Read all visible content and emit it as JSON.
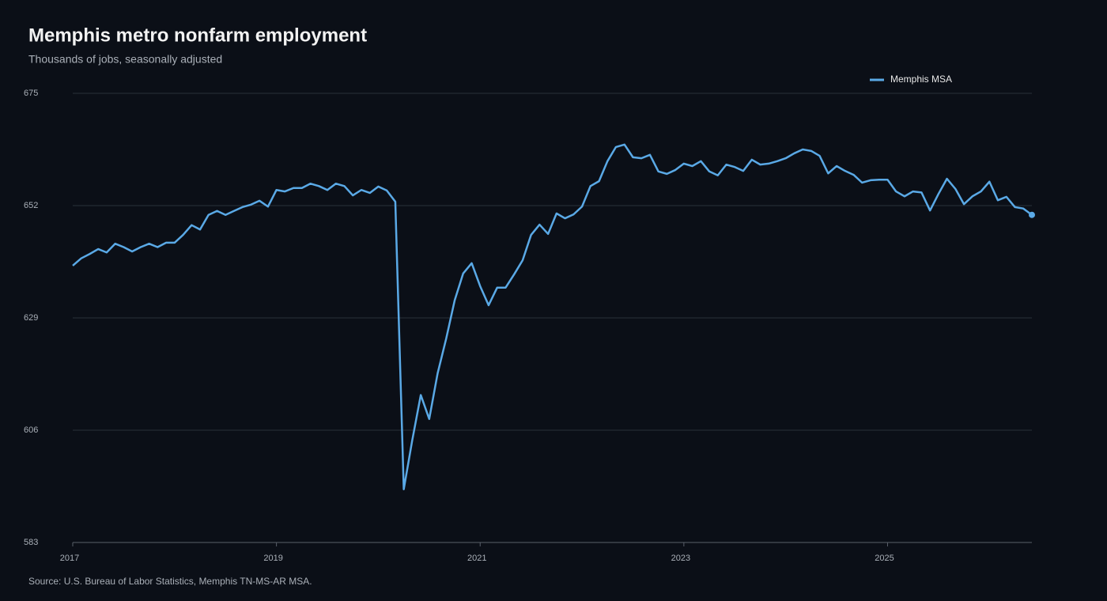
{
  "chart_data": {
    "type": "line",
    "title": "Memphis metro nonfarm employment",
    "subtitle": "Thousands of jobs, seasonally adjusted",
    "source": "Source: U.S. Bureau of Labor Statistics, Memphis TN-MS-AR MSA.",
    "x": [
      2017,
      2017.083,
      2017.167,
      2017.25,
      2017.333,
      2017.417,
      2017.5,
      2017.583,
      2017.667,
      2017.75,
      2017.833,
      2017.917,
      2018,
      2018.083,
      2018.167,
      2018.25,
      2018.333,
      2018.417,
      2018.5,
      2018.583,
      2018.667,
      2018.75,
      2018.833,
      2018.917,
      2019,
      2019.083,
      2019.167,
      2019.25,
      2019.333,
      2019.417,
      2019.5,
      2019.583,
      2019.667,
      2019.75,
      2019.833,
      2019.917,
      2020,
      2020.083,
      2020.167,
      2020.25,
      2020.333,
      2020.417,
      2020.5,
      2020.583,
      2020.667,
      2020.75,
      2020.833,
      2020.917,
      2021,
      2021.083,
      2021.167,
      2021.25,
      2021.333,
      2021.417,
      2021.5,
      2021.583,
      2021.667,
      2021.75,
      2021.833,
      2021.917,
      2022,
      2022.083,
      2022.167,
      2022.25,
      2022.333,
      2022.417,
      2022.5,
      2022.583,
      2022.667,
      2022.75,
      2022.833,
      2022.917,
      2023,
      2023.083,
      2023.167,
      2023.25,
      2023.333,
      2023.417,
      2023.5,
      2023.583,
      2023.667,
      2023.75,
      2023.833,
      2023.917,
      2024,
      2024.083,
      2024.167,
      2024.25,
      2024.333,
      2024.417,
      2024.5,
      2024.583,
      2024.667,
      2024.75,
      2024.833,
      2024.917,
      2025,
      2025.083,
      2025.167,
      2025.25,
      2025.333,
      2025.417,
      2025.5,
      2025.583,
      2025.667,
      2025.75,
      2025.833,
      2025.917,
      2026,
      2026.083,
      2026.167,
      2026.25,
      2026.333,
      2026.417
    ],
    "series": [
      {
        "name": "Memphis MSA",
        "color": "#5aa9e6",
        "values": [
          639.7,
          641.2,
          642.1,
          643.1,
          642.4,
          644.2,
          643.5,
          642.6,
          643.5,
          644.2,
          643.5,
          644.4,
          644.4,
          646.0,
          648.0,
          647.1,
          650.1,
          650.9,
          650.1,
          650.9,
          651.7,
          652.2,
          653.0,
          651.8,
          655.2,
          654.9,
          655.6,
          655.6,
          656.5,
          656.0,
          655.2,
          656.5,
          656.0,
          654.1,
          655.2,
          654.6,
          655.9,
          655.1,
          652.8,
          593.9,
          603.9,
          613.2,
          608.3,
          617.7,
          624.8,
          632.6,
          638.1,
          640.2,
          635.5,
          631.6,
          635.2,
          635.2,
          637.9,
          640.8,
          646.0,
          648.1,
          646.2,
          650.4,
          649.4,
          650.2,
          651.8,
          656.0,
          657.0,
          661.1,
          664.0,
          664.5,
          661.9,
          661.7,
          662.4,
          659.0,
          658.5,
          659.3,
          660.6,
          660.1,
          661.1,
          659.0,
          658.2,
          660.4,
          659.9,
          659.1,
          661.4,
          660.4,
          660.6,
          661.1,
          661.7,
          662.7,
          663.5,
          663.2,
          662.2,
          658.6,
          660.1,
          659.1,
          658.3,
          656.7,
          657.2,
          657.3,
          657.3,
          654.9,
          653.9,
          654.9,
          654.7,
          651.0,
          654.4,
          657.5,
          655.4,
          652.3,
          653.9,
          654.9,
          656.9,
          653.1,
          653.8,
          651.7,
          651.4,
          650.1
        ]
      }
    ],
    "xlim": [
      2017,
      2026.417
    ],
    "xticks": [
      2017,
      2019,
      2021,
      2023,
      2025
    ],
    "ylim": [
      583,
      675
    ],
    "yticks": [
      583,
      606,
      629,
      652,
      675
    ],
    "grid": true,
    "legend": "top-right"
  }
}
